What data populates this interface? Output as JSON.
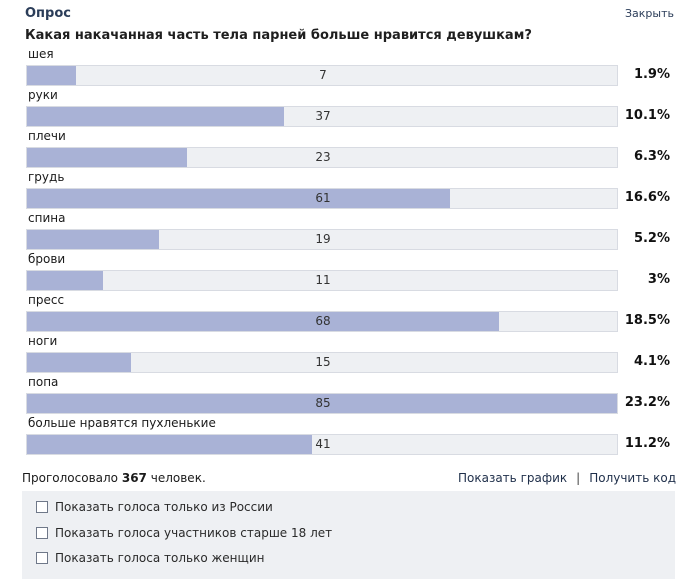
{
  "poll": {
    "title": "Опрос",
    "close_label": "Закрыть",
    "question": "Какая накачанная часть тела парней больше нравится девушкам?",
    "max_votes": 85,
    "options": [
      {
        "label": "шея",
        "votes": "7",
        "percent": "1.9%"
      },
      {
        "label": "руки",
        "votes": "37",
        "percent": "10.1%"
      },
      {
        "label": "плечи",
        "votes": "23",
        "percent": "6.3%"
      },
      {
        "label": "грудь",
        "votes": "61",
        "percent": "16.6%"
      },
      {
        "label": "спина",
        "votes": "19",
        "percent": "5.2%"
      },
      {
        "label": "брови",
        "votes": "11",
        "percent": "3%"
      },
      {
        "label": "пресс",
        "votes": "68",
        "percent": "18.5%"
      },
      {
        "label": "ноги",
        "votes": "15",
        "percent": "4.1%"
      },
      {
        "label": "попа",
        "votes": "85",
        "percent": "23.2%"
      },
      {
        "label": "больше нравятся пухленькие",
        "votes": "41",
        "percent": "11.2%"
      }
    ]
  },
  "footer": {
    "voted_prefix": "Проголосовало",
    "voted_count": "367",
    "voted_suffix": "человек.",
    "show_graph": "Показать график",
    "separator": "|",
    "get_code": "Получить код"
  },
  "filters": [
    {
      "label": "Показать голоса только из России",
      "checked": false
    },
    {
      "label": "Показать голоса участников старше 18 лет",
      "checked": false
    },
    {
      "label": "Показать голоса только женщин",
      "checked": false
    }
  ],
  "colors": {
    "bar_fill": "#a9b2d6",
    "bar_track": "#eef0f3",
    "title": "#2b3d59"
  }
}
